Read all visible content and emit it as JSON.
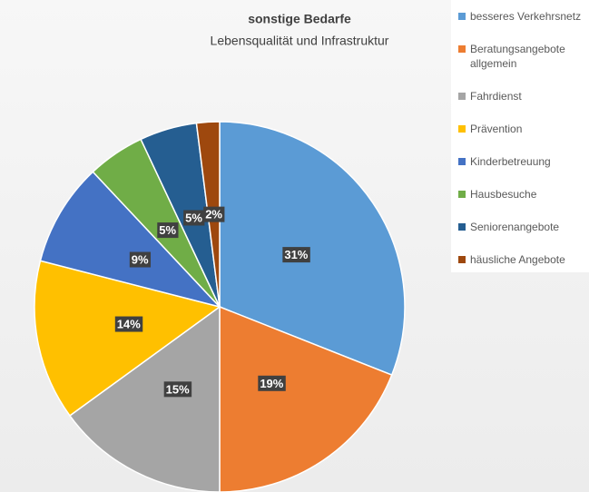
{
  "chart_data": {
    "type": "pie",
    "title": "sonstige Bedarfe",
    "subtitle": "Lebensqualität und Infrastruktur",
    "categories": [
      "besseres Verkehrsnetz",
      "Beratungsangebote allgemein",
      "Fahrdienst",
      "Prävention",
      "Kinderbetreuung",
      "Hausbesuche",
      "Seniorenangebote",
      "häusliche Angebote"
    ],
    "values": [
      31,
      19,
      15,
      14,
      9,
      5,
      5,
      2
    ],
    "value_labels": [
      "31%",
      "19%",
      "15%",
      "14%",
      "9%",
      "5%",
      "5%",
      "2%"
    ],
    "colors": [
      "#5b9bd5",
      "#ed7d31",
      "#a5a5a5",
      "#ffc000",
      "#4472c4",
      "#70ad47",
      "#255e91",
      "#9e480e"
    ],
    "legend": "right"
  }
}
